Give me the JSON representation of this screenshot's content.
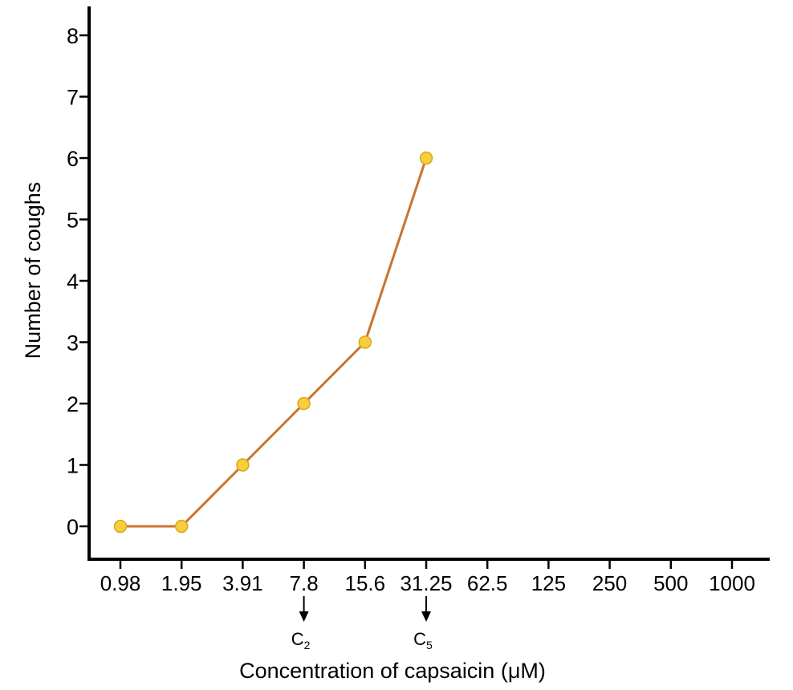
{
  "chart_data": {
    "type": "line",
    "title": "",
    "xlabel": "Concentration of capsaicin (μM)",
    "ylabel": "Number of coughs",
    "x_categories": [
      "0.98",
      "1.95",
      "3.91",
      "7.8",
      "15.6",
      "31.25",
      "62.5",
      "125",
      "250",
      "500",
      "1000"
    ],
    "y_ticks": [
      "0",
      "1",
      "2",
      "3",
      "4",
      "5",
      "6",
      "7",
      "8"
    ],
    "ylim": [
      -0.5,
      8.5
    ],
    "series": [
      {
        "x": [
          "0.98",
          "1.95",
          "3.91",
          "7.8",
          "15.6",
          "31.25"
        ],
        "values": [
          0,
          0,
          1,
          2,
          3,
          6
        ]
      }
    ],
    "markers": [
      {
        "at": "7.8",
        "label": "C",
        "subscript": "2"
      },
      {
        "at": "31.25",
        "label": "C",
        "subscript": "5"
      }
    ],
    "colors": {
      "line": "#c9742c",
      "point_fill": "#f6cf3c",
      "point_stroke": "#e0a41e",
      "axis": "#000000"
    },
    "grid": false,
    "legend": "none"
  }
}
